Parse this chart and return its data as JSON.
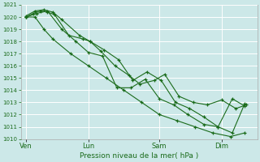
{
  "background_color": "#cce8e8",
  "grid_color": "#ffffff",
  "line_color": "#1a6b1a",
  "marker_color": "#1a6b1a",
  "xlabel": "Pression niveau de la mer( hPa )",
  "ylim": [
    1010,
    1021
  ],
  "yticks": [
    1010,
    1011,
    1012,
    1013,
    1014,
    1015,
    1016,
    1017,
    1018,
    1019,
    1020,
    1021
  ],
  "xtick_labels": [
    "Ven",
    "Lun",
    "Sam",
    "Dim"
  ],
  "xtick_positions": [
    0.0,
    3.5,
    7.5,
    11.0
  ],
  "xlim": [
    -0.3,
    13.0
  ],
  "series_x": [
    [
      0.0,
      0.4,
      0.8,
      1.2,
      1.6,
      2.4,
      3.2,
      3.6,
      4.2,
      5.0,
      5.8,
      6.4,
      7.2,
      7.8,
      8.6,
      9.4,
      10.2,
      11.0,
      11.8,
      12.4
    ],
    [
      0.0,
      0.5,
      1.0,
      1.5,
      2.0,
      3.0,
      3.6,
      4.4,
      5.2,
      6.0,
      6.8,
      7.6,
      8.4,
      9.2,
      10.0,
      10.8,
      11.6,
      12.3
    ],
    [
      0.0,
      0.5,
      1.0,
      1.5,
      2.5,
      3.5,
      4.5,
      5.5,
      6.5,
      7.5,
      8.5,
      9.5,
      10.5,
      11.5,
      12.3
    ],
    [
      0.0,
      0.6,
      1.2,
      2.0,
      2.8,
      3.5,
      4.3,
      5.1,
      5.9,
      6.7,
      7.5,
      8.3,
      9.1,
      10.0,
      10.8,
      11.6,
      12.3
    ]
  ],
  "series_y": [
    [
      1020.0,
      1020.3,
      1020.5,
      1020.4,
      1020.2,
      1018.5,
      1018.2,
      1018.0,
      1017.2,
      1016.0,
      1015.2,
      1014.5,
      1014.8,
      1015.3,
      1013.5,
      1013.0,
      1012.8,
      1013.2,
      1012.5,
      1012.8
    ],
    [
      1020.1,
      1020.5,
      1020.6,
      1020.4,
      1019.8,
      1018.5,
      1018.0,
      1017.3,
      1016.5,
      1014.8,
      1015.5,
      1014.8,
      1013.0,
      1012.5,
      1011.8,
      1011.0,
      1013.3,
      1012.7
    ],
    [
      1020.0,
      1020.0,
      1019.0,
      1018.2,
      1017.0,
      1016.0,
      1015.0,
      1014.0,
      1013.0,
      1012.0,
      1011.5,
      1011.0,
      1010.5,
      1010.2,
      1010.5
    ],
    [
      1020.0,
      1020.3,
      1020.5,
      1019.0,
      1018.0,
      1017.1,
      1016.8,
      1014.2,
      1014.2,
      1014.9,
      1013.3,
      1012.8,
      1012.0,
      1011.2,
      1011.0,
      1010.5,
      1012.9
    ]
  ]
}
